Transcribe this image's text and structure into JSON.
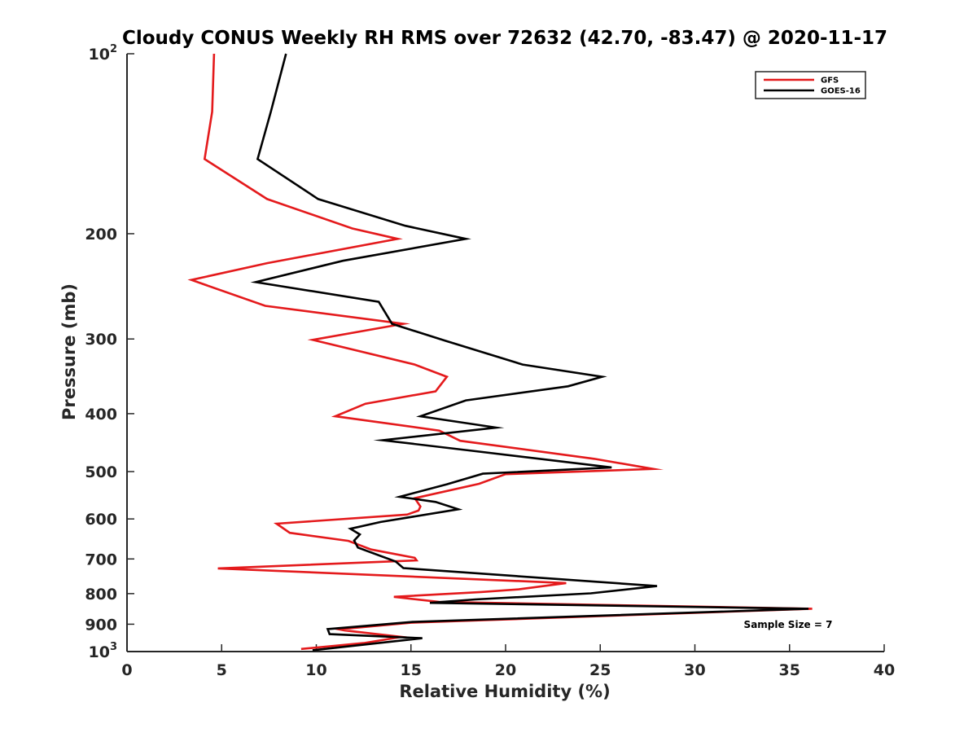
{
  "chart_data": {
    "type": "line",
    "title": "Cloudy CONUS Weekly RH RMS over 72632 (42.70, -83.47) @ 2020-11-17",
    "xlabel": "Relative Humidity (%)",
    "ylabel": "Pressure (mb)",
    "xlim": [
      0,
      40
    ],
    "ylim": [
      100,
      1000
    ],
    "y_scale": "log",
    "y_reversed": true,
    "x_ticks": [
      0,
      5,
      10,
      15,
      20,
      25,
      30,
      35,
      40
    ],
    "y_ticks": [
      {
        "value": 100,
        "label": "10",
        "sup": "2"
      },
      {
        "value": 200,
        "label": "200",
        "sup": ""
      },
      {
        "value": 300,
        "label": "300",
        "sup": ""
      },
      {
        "value": 400,
        "label": "400",
        "sup": ""
      },
      {
        "value": 500,
        "label": "500",
        "sup": ""
      },
      {
        "value": 600,
        "label": "600",
        "sup": ""
      },
      {
        "value": 700,
        "label": "700",
        "sup": ""
      },
      {
        "value": 800,
        "label": "800",
        "sup": ""
      },
      {
        "value": 900,
        "label": "900",
        "sup": ""
      },
      {
        "value": 1000,
        "label": "10",
        "sup": "3"
      }
    ],
    "grid": false,
    "legend_position": "top-right",
    "annotation": "Sample Size = 7",
    "series": [
      {
        "name": "GFS",
        "color": "#e41a1c",
        "points": [
          [
            4.6,
            100
          ],
          [
            4.5,
            125
          ],
          [
            4.1,
            150
          ],
          [
            7.4,
            175
          ],
          [
            11.9,
            196
          ],
          [
            14.3,
            204
          ],
          [
            7.4,
            224
          ],
          [
            3.4,
            239
          ],
          [
            7.3,
            264
          ],
          [
            14.6,
            283
          ],
          [
            9.8,
            301
          ],
          [
            15.2,
            331
          ],
          [
            16.9,
            347
          ],
          [
            16.3,
            367
          ],
          [
            12.6,
            385
          ],
          [
            11.0,
            404
          ],
          [
            16.5,
            427
          ],
          [
            17.6,
            444
          ],
          [
            24.7,
            476
          ],
          [
            27.8,
            495
          ],
          [
            20.0,
            505
          ],
          [
            18.6,
            524
          ],
          [
            15.2,
            554
          ],
          [
            15.5,
            572
          ],
          [
            15.4,
            581
          ],
          [
            14.8,
            590
          ],
          [
            7.9,
            611
          ],
          [
            8.6,
            633
          ],
          [
            11.7,
            653
          ],
          [
            12.9,
            675
          ],
          [
            15.2,
            697
          ],
          [
            15.3,
            704
          ],
          [
            4.8,
            726
          ],
          [
            23.2,
            768
          ],
          [
            20.7,
            787
          ],
          [
            18.7,
            795
          ],
          [
            14.1,
            810
          ],
          [
            16.5,
            826
          ],
          [
            36.2,
            848
          ],
          [
            15.0,
            895
          ],
          [
            11.2,
            918
          ],
          [
            11.5,
            922
          ],
          [
            14.5,
            945
          ],
          [
            12.5,
            968
          ],
          [
            9.2,
            990
          ]
        ]
      },
      {
        "name": "GOES-16",
        "color": "#000000",
        "points": [
          [
            8.4,
            100
          ],
          [
            7.6,
            125
          ],
          [
            6.9,
            150
          ],
          [
            10.1,
            175
          ],
          [
            14.7,
            194
          ],
          [
            17.9,
            204
          ],
          [
            11.4,
            222
          ],
          [
            6.8,
            241
          ],
          [
            13.3,
            260
          ],
          [
            14.0,
            283
          ],
          [
            16.8,
            302
          ],
          [
            20.9,
            331
          ],
          [
            25.1,
            347
          ],
          [
            23.3,
            360
          ],
          [
            17.9,
            380
          ],
          [
            15.5,
            404
          ],
          [
            19.5,
            422
          ],
          [
            13.5,
            443
          ],
          [
            18.6,
            463
          ],
          [
            25.6,
            492
          ],
          [
            18.8,
            504
          ],
          [
            16.9,
            525
          ],
          [
            14.4,
            551
          ],
          [
            16.3,
            562
          ],
          [
            17.5,
            578
          ],
          [
            13.4,
            607
          ],
          [
            11.8,
            623
          ],
          [
            12.3,
            637
          ],
          [
            12.0,
            652
          ],
          [
            12.2,
            670
          ],
          [
            14.2,
            707
          ],
          [
            14.6,
            725
          ],
          [
            28.0,
            777
          ],
          [
            24.5,
            799
          ],
          [
            18.4,
            818
          ],
          [
            16.0,
            829
          ],
          [
            36.0,
            848
          ],
          [
            15.1,
            892
          ],
          [
            10.6,
            917
          ],
          [
            10.7,
            935
          ],
          [
            15.6,
            950
          ],
          [
            9.8,
            995
          ]
        ]
      }
    ]
  }
}
